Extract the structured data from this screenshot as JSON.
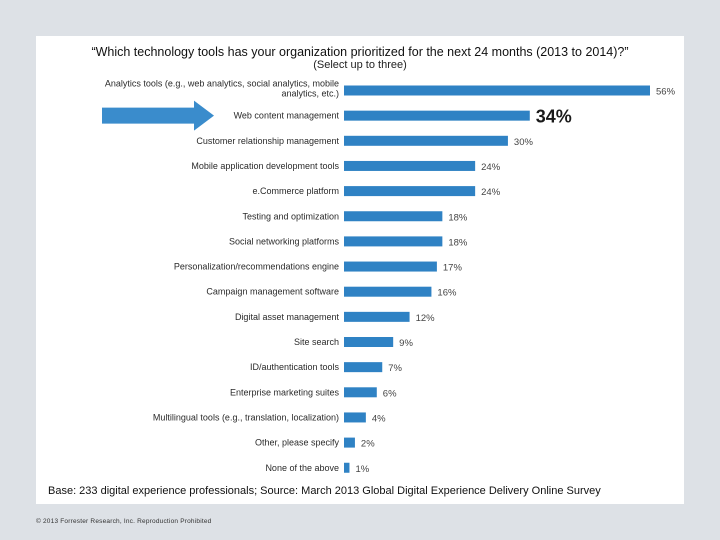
{
  "header": {
    "title": "“Which technology tools has your organization prioritized for the next 24 months (2013 to 2014)?”",
    "subtitle": "(Select up to three)"
  },
  "footer": {
    "base_note": "Base: 233 digital experience professionals; Source: March 2013 Global Digital Experience Delivery Online Survey",
    "copyright": "© 2013 Forrester Research, Inc. Reproduction Prohibited"
  },
  "chart_data": {
    "type": "bar",
    "orientation": "horizontal",
    "title": "“Which technology tools has your organization prioritized for the next 24 months (2013 to 2014)?”",
    "subtitle": "(Select up to three)",
    "categories": [
      [
        "Analytics tools (e.g., web analytics, social analytics, mobile",
        "analytics, etc.)"
      ],
      [
        "Web content management"
      ],
      [
        "Customer relationship management"
      ],
      [
        "Mobile application development tools"
      ],
      [
        "e.Commerce platform"
      ],
      [
        "Testing and optimization"
      ],
      [
        "Social networking platforms"
      ],
      [
        "Personalization/recommendations engine"
      ],
      [
        "Campaign management software"
      ],
      [
        "Digital asset management"
      ],
      [
        "Site search"
      ],
      [
        "ID/authentication tools"
      ],
      [
        "Enterprise marketing suites"
      ],
      [
        "Multilingual tools (e.g., translation, localization)"
      ],
      [
        "Other, please specify"
      ],
      [
        "None of the above"
      ]
    ],
    "values": [
      56,
      34,
      30,
      24,
      24,
      18,
      18,
      17,
      16,
      12,
      9,
      7,
      6,
      4,
      2,
      1
    ],
    "value_labels": [
      "56%",
      "34%",
      "30%",
      "24%",
      "24%",
      "18%",
      "18%",
      "17%",
      "16%",
      "12%",
      "9%",
      "7%",
      "6%",
      "4%",
      "2%",
      "1%"
    ],
    "highlight_index": 1,
    "unit": "%",
    "xlim": [
      0,
      56
    ],
    "grid": false,
    "colors": {
      "bar": "#2f82c4",
      "arrow": "#3a8ccc"
    }
  }
}
